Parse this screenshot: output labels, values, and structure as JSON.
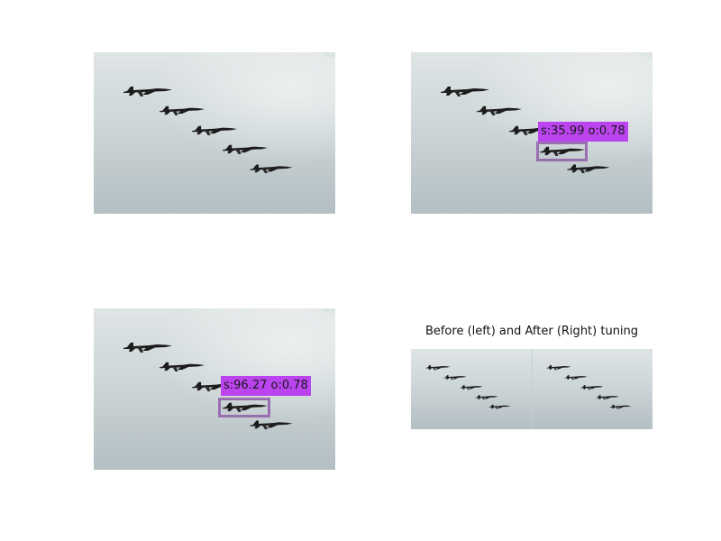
{
  "figure": {
    "caption": "Before (left) and After (Right) tuning",
    "panels": [
      {
        "id": "original",
        "label": null
      },
      {
        "id": "before",
        "label": "s:35.99 o:0.78"
      },
      {
        "id": "after",
        "label": "s:96.27 o:0.78"
      },
      {
        "id": "comparison",
        "label": null
      }
    ]
  },
  "colors": {
    "label_bg": "#bb44ee",
    "box_border": "#9a6fb0",
    "sky_light": "#e4e9ea",
    "sky_dark": "#b5c0c3",
    "jet": "#1c1c1c"
  }
}
